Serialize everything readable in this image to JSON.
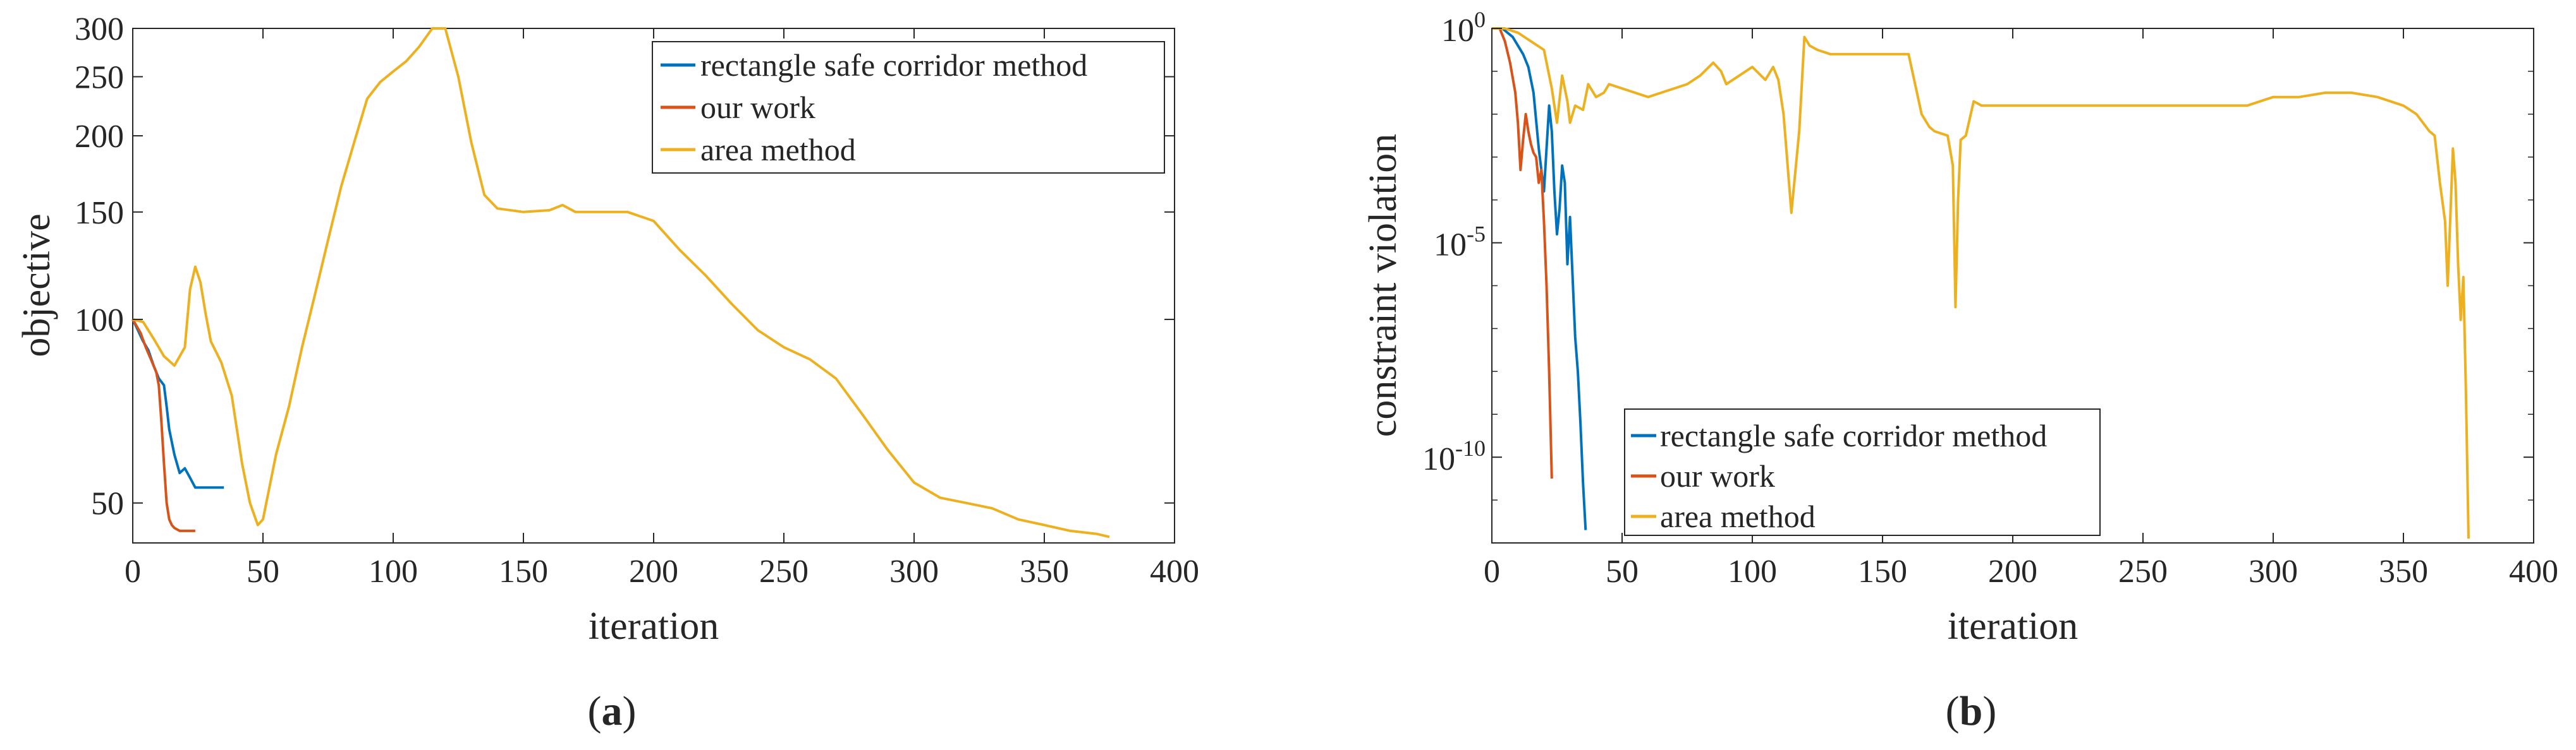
{
  "chart_data": [
    {
      "type": "line",
      "panel_label": "a",
      "yscale": "log",
      "xlabel": "iteration",
      "ylabel": "objective",
      "xlim": [
        0,
        400
      ],
      "ylim": [
        43,
        300
      ],
      "xticks": [
        0,
        50,
        100,
        150,
        200,
        250,
        300,
        350,
        400
      ],
      "xtick_labels": [
        "0",
        "50",
        "100",
        "150",
        "200",
        "250",
        "300",
        "350",
        "400"
      ],
      "yticks": [
        50,
        100,
        150,
        200,
        250,
        300
      ],
      "ytick_labels": [
        "50",
        "100",
        "150",
        "200",
        "250",
        "300"
      ],
      "legend_position": "top-right",
      "series": [
        {
          "name": "rectangle safe corridor method",
          "color": "#0072BD",
          "x": [
            0,
            2,
            4,
            6,
            8,
            10,
            12,
            13,
            14,
            16,
            18,
            20,
            22,
            24,
            28,
            32,
            35
          ],
          "y": [
            100,
            96,
            92,
            89,
            84,
            80,
            78,
            72,
            66,
            60,
            56,
            57,
            55,
            53,
            53,
            53,
            53
          ]
        },
        {
          "name": "our work",
          "color": "#D95319",
          "x": [
            0,
            3,
            5,
            7,
            9,
            10,
            11,
            12,
            13,
            14,
            15,
            16,
            18,
            20,
            22,
            24
          ],
          "y": [
            100,
            95,
            90,
            86,
            82,
            78,
            68,
            58,
            50,
            47,
            46,
            45.5,
            45,
            45,
            45,
            45
          ]
        },
        {
          "name": "area method",
          "color": "#EDB120",
          "x": [
            0,
            4,
            8,
            12,
            16,
            20,
            22,
            24,
            26,
            28,
            30,
            34,
            38,
            42,
            45,
            48,
            50,
            55,
            60,
            65,
            70,
            75,
            80,
            85,
            90,
            95,
            100,
            105,
            110,
            115,
            120,
            125,
            130,
            135,
            140,
            150,
            160,
            165,
            170,
            180,
            190,
            200,
            210,
            220,
            230,
            240,
            250,
            260,
            270,
            280,
            290,
            300,
            310,
            320,
            330,
            340,
            350,
            360,
            370,
            375
          ],
          "y": [
            100,
            99,
            93,
            87,
            84,
            90,
            112,
            122,
            115,
            102,
            92,
            85,
            75,
            58,
            50,
            46,
            47,
            60,
            72,
            90,
            110,
            135,
            165,
            195,
            230,
            245,
            255,
            265,
            280,
            300,
            300,
            250,
            195,
            160,
            152,
            150,
            151,
            154,
            150,
            150,
            150,
            145,
            130,
            118,
            106,
            96,
            90,
            86,
            80,
            70,
            61,
            54,
            51,
            50,
            49,
            47,
            46,
            45,
            44.5,
            44
          ]
        }
      ]
    },
    {
      "type": "line",
      "panel_label": "b",
      "yscale": "log",
      "xlabel": "iteration",
      "ylabel": "constraint violation",
      "xlim": [
        0,
        400
      ],
      "ylim": [
        1e-12,
        1
      ],
      "xticks": [
        0,
        50,
        100,
        150,
        200,
        250,
        300,
        350,
        400
      ],
      "xtick_labels": [
        "0",
        "50",
        "100",
        "150",
        "200",
        "250",
        "300",
        "350",
        "400"
      ],
      "ytick_labels": [
        {
          "base": "10",
          "exp": "0"
        },
        {
          "base": "10",
          "exp": "-5"
        },
        {
          "base": "10",
          "exp": "-10"
        }
      ],
      "ytick_exponents": [
        0,
        -5,
        -10
      ],
      "legend_position": "bottom-left",
      "series": [
        {
          "name": "rectangle safe corridor method",
          "color": "#0072BD",
          "x": [
            0,
            4,
            8,
            10,
            12,
            14,
            16,
            18,
            20,
            22,
            23,
            24,
            25,
            26,
            27,
            28,
            29,
            30,
            31,
            32,
            33,
            34,
            35,
            36
          ],
          "y_log10": [
            0,
            0,
            -0.2,
            -0.4,
            -0.6,
            -0.9,
            -1.5,
            -2.8,
            -3.8,
            -1.8,
            -2.4,
            -3.8,
            -4.8,
            -4.2,
            -3.2,
            -3.6,
            -5.5,
            -4.4,
            -5.8,
            -7.2,
            -8.0,
            -9.2,
            -10.6,
            -11.7
          ]
        },
        {
          "name": "our work",
          "color": "#D95319",
          "x": [
            0,
            3,
            5,
            7,
            9,
            10,
            11,
            12,
            13,
            14,
            15,
            16,
            17,
            18,
            19,
            20,
            21,
            22,
            23
          ],
          "y_log10": [
            0,
            0,
            -0.3,
            -0.8,
            -1.5,
            -2.2,
            -3.3,
            -2.6,
            -2.0,
            -2.4,
            -2.7,
            -2.9,
            -3.0,
            -3.6,
            -3.3,
            -4.5,
            -6.0,
            -8.0,
            -10.5
          ]
        },
        {
          "name": "area method",
          "color": "#EDB120",
          "x": [
            0,
            5,
            10,
            15,
            20,
            23,
            25,
            27,
            29,
            30,
            32,
            35,
            37,
            40,
            43,
            45,
            50,
            55,
            60,
            65,
            70,
            75,
            80,
            85,
            88,
            90,
            95,
            100,
            105,
            108,
            110,
            112,
            115,
            118,
            120,
            121,
            122,
            125,
            130,
            140,
            150,
            160,
            165,
            168,
            170,
            175,
            177,
            178,
            179,
            180,
            182,
            185,
            188,
            190,
            200,
            210,
            220,
            230,
            240,
            250,
            260,
            270,
            280,
            290,
            300,
            310,
            320,
            330,
            340,
            350,
            355,
            360,
            362,
            364,
            366,
            367,
            368,
            369,
            370,
            371,
            372,
            373,
            374,
            375
          ],
          "y_log10": [
            0,
            0,
            -0.1,
            -0.3,
            -0.5,
            -1.4,
            -2.2,
            -1.1,
            -1.7,
            -2.2,
            -1.8,
            -1.9,
            -1.3,
            -1.6,
            -1.5,
            -1.3,
            -1.4,
            -1.5,
            -1.6,
            -1.5,
            -1.4,
            -1.3,
            -1.1,
            -0.8,
            -1.0,
            -1.3,
            -1.1,
            -0.9,
            -1.2,
            -0.9,
            -1.2,
            -2.0,
            -4.3,
            -2.4,
            -0.2,
            -0.3,
            -0.4,
            -0.5,
            -0.6,
            -0.6,
            -0.6,
            -0.6,
            -2.0,
            -2.3,
            -2.4,
            -2.5,
            -3.2,
            -6.5,
            -4.0,
            -2.6,
            -2.5,
            -1.7,
            -1.8,
            -1.8,
            -1.8,
            -1.8,
            -1.8,
            -1.8,
            -1.8,
            -1.8,
            -1.8,
            -1.8,
            -1.8,
            -1.8,
            -1.6,
            -1.6,
            -1.5,
            -1.5,
            -1.6,
            -1.8,
            -2.0,
            -2.4,
            -2.5,
            -3.6,
            -4.5,
            -6.0,
            -4.4,
            -2.8,
            -3.6,
            -5.5,
            -6.8,
            -5.8,
            -8.5,
            -11.9
          ]
        }
      ]
    }
  ],
  "captions": [
    "a",
    "b"
  ]
}
